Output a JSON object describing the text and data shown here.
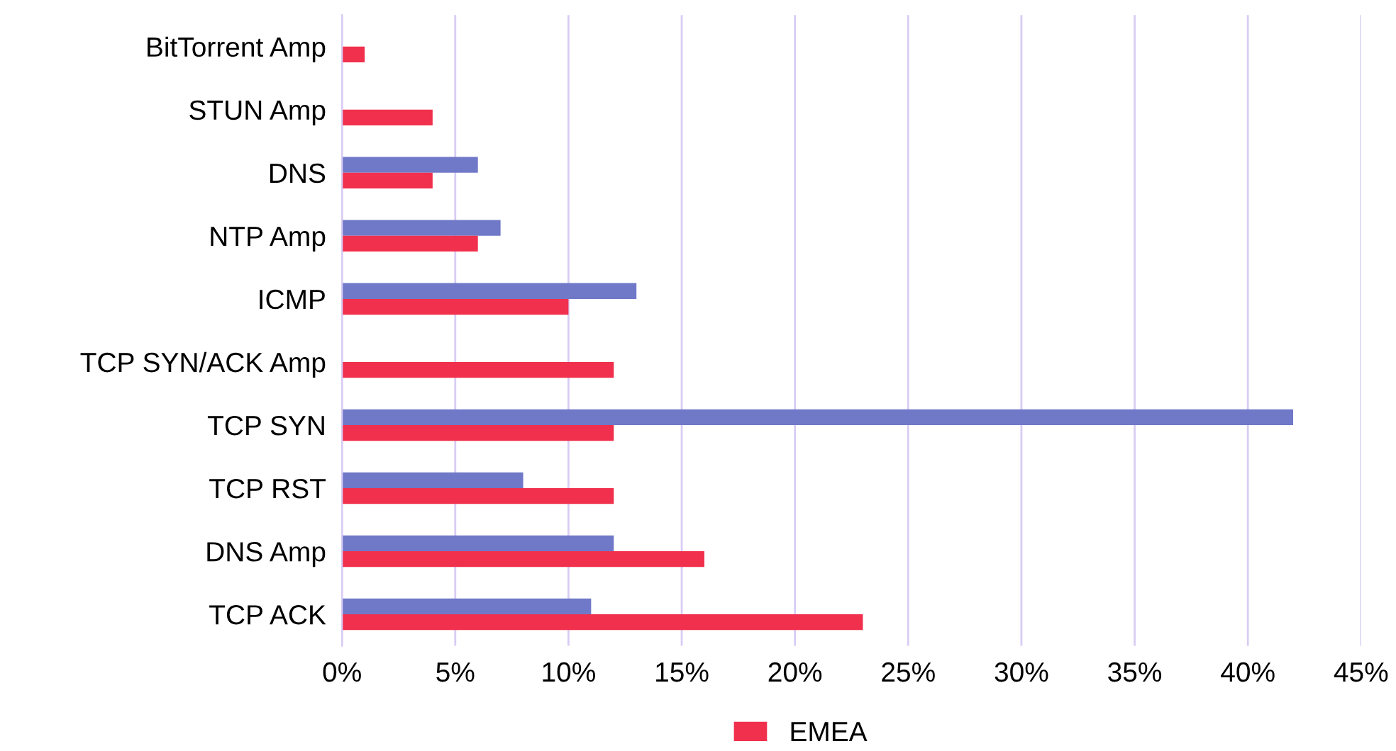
{
  "chart_data": {
    "type": "bar",
    "orientation": "horizontal",
    "categories": [
      "BitTorrent Amp",
      "STUN Amp",
      "DNS",
      "NTP Amp",
      "ICMP",
      "TCP SYN/ACK Amp",
      "TCP SYN",
      "TCP RST",
      "DNS Amp",
      "TCP ACK"
    ],
    "series": [
      {
        "color": "#7078c8",
        "values": [
          null,
          null,
          6,
          7,
          13,
          null,
          42,
          8,
          12,
          11
        ]
      },
      {
        "name": "EMEA",
        "color": "#f0304c",
        "values": [
          1,
          4,
          4,
          6,
          10,
          12,
          12,
          12,
          16,
          23
        ]
      }
    ],
    "xlim": [
      0,
      45
    ],
    "xticks": [
      {
        "value": 0,
        "label": "0%"
      },
      {
        "value": 5,
        "label": "5%"
      },
      {
        "value": 10,
        "label": "10%"
      },
      {
        "value": 15,
        "label": "15%"
      },
      {
        "value": 20,
        "label": "20%"
      },
      {
        "value": 25,
        "label": "25%"
      },
      {
        "value": 30,
        "label": "30%"
      },
      {
        "value": 35,
        "label": "35%"
      },
      {
        "value": 40,
        "label": "40%"
      },
      {
        "value": 45,
        "label": "45%"
      }
    ],
    "grid": "x",
    "legend": "bottom"
  }
}
